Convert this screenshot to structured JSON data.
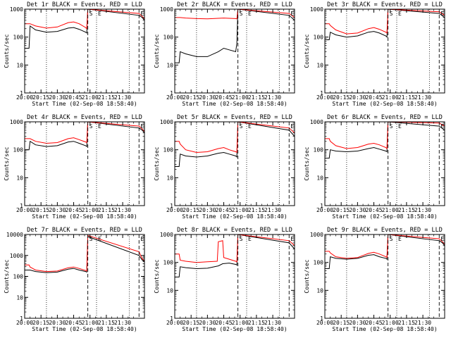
{
  "title_template": "Det {id} BLACK = Events, RED = LLD",
  "xlabel": "Start Time (02-Sep-08 18:58:40)",
  "ylabel": "Counts/sec",
  "chart_data": [
    {
      "type": "line",
      "title": "Det 1r BLACK = Events, RED = LLD",
      "xlabel": "Start Time (02-Sep-08 18:58:40)",
      "ylabel": "Counts/sec",
      "ytype": "log",
      "ylim": [
        1,
        1000
      ],
      "yticks": [
        1,
        10,
        100,
        1000
      ],
      "xtick_labels": [
        "20:00",
        "20:15",
        "20:30",
        "20:45",
        "21:00",
        "21:15",
        "21:30"
      ],
      "xlim": [
        0,
        110
      ],
      "dotted_lines_min": [
        20,
        66,
        96
      ],
      "dashed_lines_min": [
        58,
        105
      ],
      "markers": [
        "S",
        "E",
        "E"
      ],
      "series": [
        {
          "name": "Events",
          "color": "#000000",
          "x": [
            0,
            4,
            5,
            10,
            20,
            30,
            40,
            45,
            50,
            56,
            57,
            58,
            105,
            108,
            110
          ],
          "y": [
            40,
            40,
            250,
            180,
            150,
            160,
            210,
            220,
            190,
            150,
            140,
            1000,
            600,
            500,
            400
          ]
        },
        {
          "name": "LLD",
          "color": "#ff0000",
          "x": [
            0,
            4,
            5,
            10,
            20,
            30,
            40,
            45,
            50,
            56,
            57,
            58,
            105,
            108,
            110
          ],
          "y": [
            300,
            300,
            300,
            250,
            210,
            230,
            330,
            350,
            300,
            220,
            200,
            1000,
            700,
            550,
            450
          ]
        }
      ]
    },
    {
      "type": "line",
      "title": "Det 2r BLACK = Events, RED = LLD",
      "xlabel": "Start Time (02-Sep-08 18:58:40)",
      "ylabel": "Counts/sec",
      "ytype": "log",
      "ylim": [
        1,
        1000
      ],
      "yticks": [
        1,
        10,
        100,
        1000
      ],
      "xtick_labels": [
        "20:00",
        "20:15",
        "20:30",
        "20:45",
        "21:00",
        "21:15",
        "21:30"
      ],
      "xlim": [
        0,
        110
      ],
      "dotted_lines_min": [
        20,
        66,
        96
      ],
      "dashed_lines_min": [
        58,
        105
      ],
      "markers": [
        "S",
        "E",
        "E"
      ],
      "series": [
        {
          "name": "Events",
          "color": "#000000",
          "x": [
            0,
            4,
            5,
            10,
            20,
            30,
            40,
            45,
            50,
            56,
            57,
            58,
            105,
            110
          ],
          "y": [
            12,
            12,
            30,
            25,
            20,
            20,
            30,
            40,
            35,
            30,
            60,
            1000,
            600,
            400
          ]
        },
        {
          "name": "LLD",
          "color": "#ff0000",
          "x": [
            0,
            4,
            5,
            10,
            20,
            30,
            40,
            45,
            50,
            56,
            57,
            58,
            105,
            110
          ],
          "y": [
            500,
            500,
            500,
            480,
            460,
            450,
            470,
            480,
            470,
            460,
            450,
            1000,
            700,
            500
          ]
        }
      ]
    },
    {
      "type": "line",
      "title": "Det 3r BLACK = Events, RED = LLD",
      "xlabel": "Start Time (02-Sep-08 18:58:40)",
      "ylabel": "Counts/sec",
      "ytype": "log",
      "ylim": [
        1,
        1000
      ],
      "yticks": [
        1,
        10,
        100,
        1000
      ],
      "xtick_labels": [
        "20:00",
        "20:15",
        "20:30",
        "20:45",
        "21:00",
        "21:15",
        "21:30"
      ],
      "xlim": [
        0,
        110
      ],
      "dotted_lines_min": [
        20,
        66,
        96
      ],
      "dashed_lines_min": [
        58,
        105
      ],
      "markers": [
        "S",
        "E",
        "E"
      ],
      "series": [
        {
          "name": "Events",
          "color": "#000000",
          "x": [
            0,
            4,
            5,
            10,
            20,
            30,
            40,
            45,
            50,
            56,
            57,
            58,
            105,
            110
          ],
          "y": [
            80,
            80,
            150,
            120,
            100,
            110,
            150,
            160,
            140,
            110,
            100,
            1000,
            700,
            500
          ]
        },
        {
          "name": "LLD",
          "color": "#ff0000",
          "x": [
            0,
            4,
            5,
            10,
            20,
            30,
            40,
            45,
            50,
            56,
            57,
            58,
            105,
            110
          ],
          "y": [
            300,
            300,
            260,
            180,
            130,
            140,
            200,
            220,
            190,
            150,
            140,
            1000,
            800,
            600
          ]
        }
      ]
    },
    {
      "type": "line",
      "title": "Det 4r BLACK = Events, RED = LLD",
      "xlabel": "Start Time (02-Sep-08 18:58:40)",
      "ylabel": "Counts/sec",
      "ytype": "log",
      "ylim": [
        1,
        1000
      ],
      "yticks": [
        1,
        10,
        100,
        1000
      ],
      "xtick_labels": [
        "20:00",
        "20:15",
        "20:30",
        "20:45",
        "21:00",
        "21:15",
        "21:30"
      ],
      "xlim": [
        0,
        110
      ],
      "dotted_lines_min": [
        20,
        66,
        96
      ],
      "dashed_lines_min": [
        58,
        105
      ],
      "markers": [
        "S",
        "E",
        "E"
      ],
      "series": [
        {
          "name": "Events",
          "color": "#000000",
          "x": [
            0,
            4,
            5,
            10,
            20,
            30,
            40,
            45,
            50,
            56,
            57,
            58,
            105,
            108,
            110
          ],
          "y": [
            100,
            100,
            200,
            150,
            130,
            140,
            190,
            200,
            170,
            140,
            130,
            1000,
            600,
            500,
            400
          ]
        },
        {
          "name": "LLD",
          "color": "#ff0000",
          "x": [
            0,
            4,
            5,
            10,
            20,
            30,
            40,
            45,
            50,
            56,
            57,
            58,
            105,
            108,
            110
          ],
          "y": [
            250,
            250,
            250,
            200,
            170,
            180,
            250,
            270,
            230,
            190,
            180,
            1000,
            700,
            550,
            450
          ]
        }
      ]
    },
    {
      "type": "line",
      "title": "Det 5r BLACK = Events, RED = LLD",
      "xlabel": "Start Time (02-Sep-08 18:58:40)",
      "ylabel": "Counts/sec",
      "ytype": "log",
      "ylim": [
        1,
        1000
      ],
      "yticks": [
        1,
        10,
        100,
        1000
      ],
      "xtick_labels": [
        "20:00",
        "20:15",
        "20:30",
        "20:45",
        "21:00",
        "21:15",
        "21:30"
      ],
      "xlim": [
        0,
        110
      ],
      "dotted_lines_min": [
        20,
        66,
        96
      ],
      "dashed_lines_min": [
        58,
        105
      ],
      "markers": [
        "S",
        "E",
        "E"
      ],
      "series": [
        {
          "name": "Events",
          "color": "#000000",
          "x": [
            0,
            4,
            5,
            10,
            20,
            30,
            40,
            45,
            50,
            56,
            57,
            58,
            105,
            110
          ],
          "y": [
            25,
            25,
            70,
            60,
            55,
            60,
            75,
            80,
            70,
            60,
            55,
            1000,
            500,
            300
          ]
        },
        {
          "name": "LLD",
          "color": "#ff0000",
          "x": [
            0,
            4,
            5,
            10,
            20,
            30,
            40,
            45,
            50,
            56,
            57,
            58,
            105,
            110
          ],
          "y": [
            200,
            200,
            160,
            100,
            80,
            85,
            110,
            120,
            100,
            85,
            80,
            1000,
            600,
            400
          ]
        }
      ]
    },
    {
      "type": "line",
      "title": "Det 6r BLACK = Events, RED = LLD",
      "xlabel": "Start Time (02-Sep-08 18:58:40)",
      "ylabel": "Counts/sec",
      "ytype": "log",
      "ylim": [
        1,
        1000
      ],
      "yticks": [
        1,
        10,
        100,
        1000
      ],
      "xtick_labels": [
        "20:00",
        "20:15",
        "20:30",
        "20:45",
        "21:00",
        "21:15",
        "21:30"
      ],
      "xlim": [
        0,
        110
      ],
      "dotted_lines_min": [
        20,
        66,
        96
      ],
      "dashed_lines_min": [
        58,
        105
      ],
      "markers": [
        "S",
        "E",
        "E"
      ],
      "series": [
        {
          "name": "Events",
          "color": "#000000",
          "x": [
            0,
            4,
            5,
            10,
            20,
            30,
            40,
            45,
            50,
            56,
            57,
            58,
            105,
            110
          ],
          "y": [
            50,
            50,
            100,
            90,
            85,
            90,
            110,
            120,
            105,
            90,
            85,
            1000,
            700,
            500
          ]
        },
        {
          "name": "LLD",
          "color": "#ff0000",
          "x": [
            0,
            4,
            5,
            10,
            20,
            30,
            40,
            45,
            50,
            56,
            57,
            58,
            105,
            110
          ],
          "y": [
            250,
            250,
            200,
            140,
            110,
            120,
            160,
            170,
            150,
            120,
            110,
            1000,
            900,
            700
          ]
        }
      ]
    },
    {
      "type": "line",
      "title": "Det 7r BLACK = Events, RED = LLD",
      "xlabel": "Start Time (02-Sep-08 18:58:40)",
      "ylabel": "Counts/sec",
      "ytype": "log",
      "ylim": [
        1,
        10000
      ],
      "yticks": [
        1,
        10,
        100,
        1000,
        10000
      ],
      "xtick_labels": [
        "20:00",
        "20:15",
        "20:30",
        "20:45",
        "21:00",
        "21:15",
        "21:30"
      ],
      "xlim": [
        0,
        110
      ],
      "dotted_lines_min": [
        20,
        66,
        96
      ],
      "dashed_lines_min": [
        58,
        105
      ],
      "markers": [
        "S",
        "E",
        "E"
      ],
      "series": [
        {
          "name": "Events",
          "color": "#000000",
          "x": [
            0,
            4,
            5,
            10,
            20,
            30,
            40,
            45,
            50,
            56,
            57,
            58,
            105,
            108,
            110
          ],
          "y": [
            200,
            200,
            200,
            170,
            150,
            160,
            220,
            240,
            200,
            170,
            160,
            8000,
            1000,
            600,
            500
          ]
        },
        {
          "name": "LLD",
          "color": "#ff0000",
          "x": [
            0,
            4,
            5,
            10,
            20,
            30,
            40,
            45,
            50,
            56,
            57,
            58,
            105,
            108,
            110
          ],
          "y": [
            350,
            350,
            280,
            200,
            170,
            180,
            260,
            280,
            240,
            190,
            180,
            9000,
            1500,
            700,
            550
          ]
        }
      ]
    },
    {
      "type": "line",
      "title": "Det 8r BLACK = Events, RED = LLD",
      "xlabel": "Start Time (02-Sep-08 18:58:40)",
      "ylabel": "Counts/sec",
      "ytype": "log",
      "ylim": [
        1,
        1000
      ],
      "yticks": [
        1,
        10,
        100,
        1000
      ],
      "xtick_labels": [
        "20:00",
        "20:15",
        "20:30",
        "20:45",
        "21:00",
        "21:15",
        "21:30"
      ],
      "xlim": [
        0,
        110
      ],
      "dotted_lines_min": [
        20,
        66,
        96
      ],
      "dashed_lines_min": [
        58,
        105
      ],
      "markers": [
        "S",
        "E",
        "E"
      ],
      "series": [
        {
          "name": "Events",
          "color": "#000000",
          "x": [
            0,
            4,
            5,
            10,
            20,
            30,
            40,
            44,
            50,
            56,
            57,
            58,
            105,
            110
          ],
          "y": [
            30,
            30,
            70,
            65,
            60,
            62,
            75,
            90,
            95,
            85,
            80,
            1000,
            500,
            300
          ]
        },
        {
          "name": "LLD",
          "color": "#ff0000",
          "x": [
            0,
            4,
            5,
            10,
            20,
            30,
            39,
            40,
            44,
            45,
            50,
            56,
            57,
            58,
            105,
            110
          ],
          "y": [
            200,
            200,
            120,
            110,
            100,
            105,
            110,
            550,
            600,
            150,
            130,
            110,
            105,
            1000,
            600,
            400
          ]
        }
      ]
    },
    {
      "type": "line",
      "title": "Det 9r BLACK = Events, RED = LLD",
      "xlabel": "Start Time (02-Sep-08 18:58:40)",
      "ylabel": "Counts/sec",
      "ytype": "log",
      "ylim": [
        1,
        1000
      ],
      "yticks": [
        1,
        10,
        100,
        1000
      ],
      "xtick_labels": [
        "20:00",
        "20:15",
        "20:30",
        "20:45",
        "21:00",
        "21:15",
        "21:30"
      ],
      "xlim": [
        0,
        110
      ],
      "dotted_lines_min": [
        20,
        66,
        96
      ],
      "dashed_lines_min": [
        58,
        105
      ],
      "markers": [
        "S",
        "E",
        "E"
      ],
      "series": [
        {
          "name": "Events",
          "color": "#000000",
          "x": [
            0,
            4,
            5,
            10,
            20,
            30,
            40,
            45,
            50,
            56,
            57,
            58,
            105,
            108,
            110
          ],
          "y": [
            60,
            60,
            160,
            140,
            130,
            140,
            180,
            190,
            160,
            140,
            130,
            1000,
            600,
            500,
            400
          ]
        },
        {
          "name": "LLD",
          "color": "#ff0000",
          "x": [
            0,
            4,
            5,
            10,
            20,
            30,
            40,
            45,
            50,
            56,
            57,
            58,
            105,
            108,
            110
          ],
          "y": [
            250,
            250,
            220,
            160,
            140,
            150,
            210,
            230,
            200,
            160,
            150,
            1000,
            700,
            550,
            450
          ]
        }
      ]
    }
  ]
}
